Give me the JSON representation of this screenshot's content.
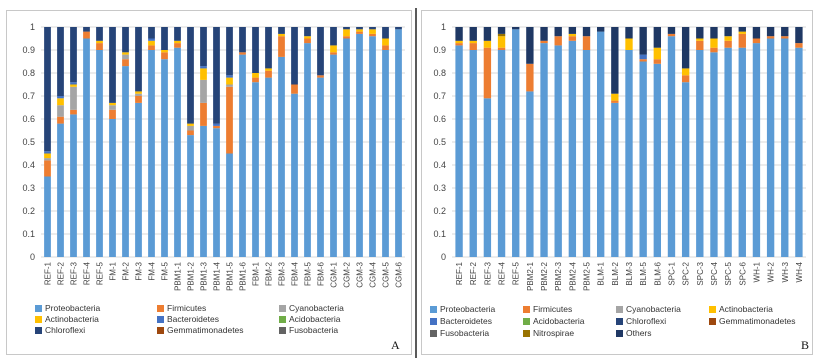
{
  "chart_data": [
    {
      "type": "bar",
      "stacked": true,
      "panel_label": "A",
      "ylim": [
        0,
        1
      ],
      "yticks": [
        0,
        0.1,
        0.2,
        0.3,
        0.4,
        0.5,
        0.6,
        0.7,
        0.8,
        0.9,
        1
      ],
      "grid": true,
      "legend_position": "bottom",
      "categories": [
        "REF-1",
        "REF-2",
        "REF-3",
        "REF-4",
        "REF-5",
        "FM-1",
        "FM-2",
        "FM-3",
        "FM-4",
        "FM-5",
        "PBM1-1",
        "PBM1-2",
        "PBM1-3",
        "PBM1-4",
        "PBM1-5",
        "PBM1-6",
        "FBM-1",
        "FBM-2",
        "FBM-3",
        "FBM-4",
        "FBM-5",
        "FBM-6",
        "CGM-1",
        "CGM-2",
        "CGM-3",
        "CGM-4",
        "CGM-5",
        "CGM-6"
      ],
      "series": [
        {
          "name": "Proteobacteria",
          "color": "#5b9bd5",
          "values": [
            0.35,
            0.58,
            0.62,
            0.95,
            0.9,
            0.6,
            0.83,
            0.67,
            0.9,
            0.86,
            0.91,
            0.53,
            0.57,
            0.56,
            0.45,
            0.88,
            0.76,
            0.78,
            0.87,
            0.71,
            0.93,
            0.78,
            0.88,
            0.95,
            0.97,
            0.96,
            0.9,
            0.99
          ]
        },
        {
          "name": "Firmicutes",
          "color": "#ed7d31",
          "values": [
            0.07,
            0.03,
            0.02,
            0.03,
            0.03,
            0.04,
            0.03,
            0.03,
            0.02,
            0.03,
            0.02,
            0.02,
            0.1,
            0.01,
            0.29,
            0.01,
            0.02,
            0.03,
            0.09,
            0.04,
            0.02,
            0.01,
            0.01,
            0.01,
            0.01,
            0.01,
            0.02,
            0.0
          ]
        },
        {
          "name": "Cyanobacteria",
          "color": "#a5a5a5",
          "values": [
            0.01,
            0.05,
            0.1,
            0.0,
            0.0,
            0.02,
            0.02,
            0.01,
            0.0,
            0.0,
            0.0,
            0.02,
            0.1,
            0.0,
            0.01,
            0.0,
            0.0,
            0.0,
            0.0,
            0.0,
            0.0,
            0.0,
            0.0,
            0.0,
            0.0,
            0.0,
            0.0,
            0.0
          ]
        },
        {
          "name": "Actinobacteria",
          "color": "#ffc000",
          "values": [
            0.02,
            0.03,
            0.01,
            0.0,
            0.01,
            0.01,
            0.01,
            0.01,
            0.02,
            0.01,
            0.01,
            0.01,
            0.05,
            0.0,
            0.03,
            0.0,
            0.02,
            0.01,
            0.01,
            0.0,
            0.01,
            0.0,
            0.03,
            0.03,
            0.01,
            0.02,
            0.03,
            0.0
          ]
        },
        {
          "name": "Bacteroidetes",
          "color": "#4472c4",
          "values": [
            0.01,
            0.01,
            0.01,
            0.0,
            0.0,
            0.0,
            0.0,
            0.0,
            0.01,
            0.0,
            0.0,
            0.0,
            0.01,
            0.01,
            0.01,
            0.0,
            0.0,
            0.0,
            0.0,
            0.0,
            0.0,
            0.0,
            0.0,
            0.0,
            0.0,
            0.0,
            0.0,
            0.0
          ]
        },
        {
          "name": "Acidobacteria",
          "color": "#70ad47",
          "values": [
            0.0,
            0.0,
            0.0,
            0.0,
            0.0,
            0.0,
            0.0,
            0.0,
            0.0,
            0.0,
            0.0,
            0.0,
            0.0,
            0.0,
            0.0,
            0.0,
            0.0,
            0.0,
            0.0,
            0.0,
            0.0,
            0.0,
            0.0,
            0.0,
            0.0,
            0.0,
            0.0,
            0.0
          ]
        },
        {
          "name": "Chloroflexi",
          "color": "#264478",
          "values": [
            0.54,
            0.3,
            0.24,
            0.02,
            0.06,
            0.33,
            0.11,
            0.28,
            0.05,
            0.1,
            0.06,
            0.42,
            0.17,
            0.42,
            0.21,
            0.11,
            0.2,
            0.18,
            0.03,
            0.25,
            0.04,
            0.21,
            0.08,
            0.01,
            0.01,
            0.01,
            0.05,
            0.01
          ]
        },
        {
          "name": "Gemmatimonadetes",
          "color": "#9e480e",
          "values": [
            0.0,
            0.0,
            0.0,
            0.0,
            0.0,
            0.0,
            0.0,
            0.0,
            0.0,
            0.0,
            0.0,
            0.0,
            0.0,
            0.0,
            0.0,
            0.0,
            0.0,
            0.0,
            0.0,
            0.0,
            0.0,
            0.0,
            0.0,
            0.0,
            0.0,
            0.0,
            0.0,
            0.0
          ]
        },
        {
          "name": "Fusobacteria",
          "color": "#636363",
          "values": [
            0.0,
            0.0,
            0.0,
            0.0,
            0.0,
            0.0,
            0.0,
            0.0,
            0.0,
            0.0,
            0.0,
            0.0,
            0.0,
            0.0,
            0.0,
            0.0,
            0.0,
            0.0,
            0.0,
            0.0,
            0.0,
            0.0,
            0.0,
            0.0,
            0.0,
            0.0,
            0.0,
            0.0
          ]
        }
      ],
      "legend": [
        "Proteobacteria",
        "Firmicutes",
        "Cyanobacteria",
        "Actinobacteria",
        "Bacteroidetes",
        "Acidobacteria",
        "Chloroflexi",
        "Gemmatimonadetes",
        "Fusobacteria"
      ]
    },
    {
      "type": "bar",
      "stacked": true,
      "panel_label": "B",
      "ylim": [
        0,
        1
      ],
      "yticks": [
        0,
        0.1,
        0.2,
        0.3,
        0.4,
        0.5,
        0.6,
        0.7,
        0.8,
        0.9,
        1
      ],
      "grid": true,
      "legend_position": "bottom",
      "categories": [
        "REF-1",
        "REF-2",
        "REF-3",
        "REF-4",
        "REF-5",
        "PBM2-1",
        "PBM2-2",
        "PBM2-3",
        "PBM2-4",
        "PBM2-5",
        "BLM-1",
        "BLM-2",
        "BLM-3",
        "BLM-5",
        "BLM-6",
        "SPC-1",
        "SPC-2",
        "SPC-3",
        "SPC-4",
        "SPC-5",
        "SPC-6",
        "WH-1",
        "WH-2",
        "WH-3",
        "WH-4"
      ],
      "series": [
        {
          "name": "Proteobacteria",
          "color": "#5b9bd5",
          "values": [
            0.92,
            0.9,
            0.69,
            0.9,
            0.99,
            0.72,
            0.93,
            0.92,
            0.94,
            0.9,
            0.98,
            0.67,
            0.9,
            0.85,
            0.84,
            0.96,
            0.76,
            0.9,
            0.89,
            0.91,
            0.91,
            0.93,
            0.95,
            0.95,
            0.91
          ]
        },
        {
          "name": "Firmicutes",
          "color": "#ed7d31",
          "values": [
            0.01,
            0.03,
            0.22,
            0.01,
            0.0,
            0.12,
            0.01,
            0.04,
            0.02,
            0.06,
            0.0,
            0.01,
            0.0,
            0.01,
            0.02,
            0.01,
            0.03,
            0.04,
            0.02,
            0.03,
            0.06,
            0.02,
            0.01,
            0.01,
            0.02
          ]
        },
        {
          "name": "Cyanobacteria",
          "color": "#a5a5a5",
          "values": [
            0.0,
            0.0,
            0.0,
            0.0,
            0.0,
            0.0,
            0.0,
            0.0,
            0.0,
            0.0,
            0.0,
            0.0,
            0.0,
            0.0,
            0.0,
            0.0,
            0.0,
            0.0,
            0.0,
            0.0,
            0.0,
            0.0,
            0.0,
            0.0,
            0.0
          ]
        },
        {
          "name": "Actinobacteria",
          "color": "#ffc000",
          "values": [
            0.01,
            0.01,
            0.03,
            0.05,
            0.0,
            0.0,
            0.0,
            0.0,
            0.01,
            0.0,
            0.0,
            0.03,
            0.05,
            0.0,
            0.05,
            0.0,
            0.03,
            0.01,
            0.04,
            0.02,
            0.01,
            0.0,
            0.0,
            0.0,
            0.0
          ]
        },
        {
          "name": "Bacteroidetes",
          "color": "#4472c4",
          "values": [
            0.0,
            0.0,
            0.0,
            0.0,
            0.0,
            0.0,
            0.0,
            0.0,
            0.0,
            0.0,
            0.0,
            0.0,
            0.0,
            0.02,
            0.0,
            0.0,
            0.0,
            0.0,
            0.0,
            0.0,
            0.0,
            0.0,
            0.0,
            0.0,
            0.0
          ]
        },
        {
          "name": "Acidobacteria",
          "color": "#70ad47",
          "values": [
            0.0,
            0.0,
            0.0,
            0.0,
            0.0,
            0.0,
            0.0,
            0.0,
            0.0,
            0.0,
            0.0,
            0.0,
            0.0,
            0.0,
            0.0,
            0.0,
            0.0,
            0.0,
            0.0,
            0.0,
            0.0,
            0.0,
            0.0,
            0.0,
            0.0
          ]
        },
        {
          "name": "Chloroflexi",
          "color": "#264478",
          "values": [
            0.0,
            0.0,
            0.0,
            0.0,
            0.0,
            0.0,
            0.0,
            0.0,
            0.0,
            0.0,
            0.0,
            0.0,
            0.0,
            0.0,
            0.0,
            0.0,
            0.0,
            0.0,
            0.0,
            0.0,
            0.0,
            0.0,
            0.0,
            0.0,
            0.0
          ]
        },
        {
          "name": "Gemmatimonadetes",
          "color": "#9e480e",
          "values": [
            0.0,
            0.0,
            0.0,
            0.0,
            0.0,
            0.0,
            0.0,
            0.0,
            0.0,
            0.0,
            0.0,
            0.0,
            0.0,
            0.0,
            0.0,
            0.0,
            0.0,
            0.0,
            0.0,
            0.0,
            0.0,
            0.0,
            0.0,
            0.0,
            0.0
          ]
        },
        {
          "name": "Fusobacteria",
          "color": "#636363",
          "values": [
            0.0,
            0.0,
            0.0,
            0.0,
            0.0,
            0.0,
            0.0,
            0.0,
            0.0,
            0.0,
            0.0,
            0.0,
            0.0,
            0.0,
            0.0,
            0.0,
            0.0,
            0.0,
            0.0,
            0.0,
            0.0,
            0.0,
            0.0,
            0.0,
            0.0
          ]
        },
        {
          "name": "Nitrospirae",
          "color": "#997300",
          "values": [
            0.0,
            0.0,
            0.0,
            0.01,
            0.0,
            0.0,
            0.0,
            0.0,
            0.0,
            0.0,
            0.0,
            0.0,
            0.0,
            0.0,
            0.0,
            0.0,
            0.0,
            0.0,
            0.0,
            0.0,
            0.0,
            0.0,
            0.0,
            0.0,
            0.0
          ]
        },
        {
          "name": "Others",
          "color": "#1f3864",
          "values": [
            0.06,
            0.06,
            0.06,
            0.03,
            0.01,
            0.16,
            0.06,
            0.04,
            0.03,
            0.04,
            0.02,
            0.29,
            0.05,
            0.12,
            0.09,
            0.03,
            0.18,
            0.05,
            0.05,
            0.04,
            0.02,
            0.05,
            0.04,
            0.04,
            0.07
          ]
        }
      ],
      "legend": [
        "Proteobacteria",
        "Firmicutes",
        "Cyanobacteria",
        "Actinobacteria",
        "Bacteroidetes",
        "Acidobacteria",
        "Chloroflexi",
        "Gemmatimonadetes",
        "Fusobacteria",
        "Nitrospirae",
        "Others"
      ]
    }
  ]
}
